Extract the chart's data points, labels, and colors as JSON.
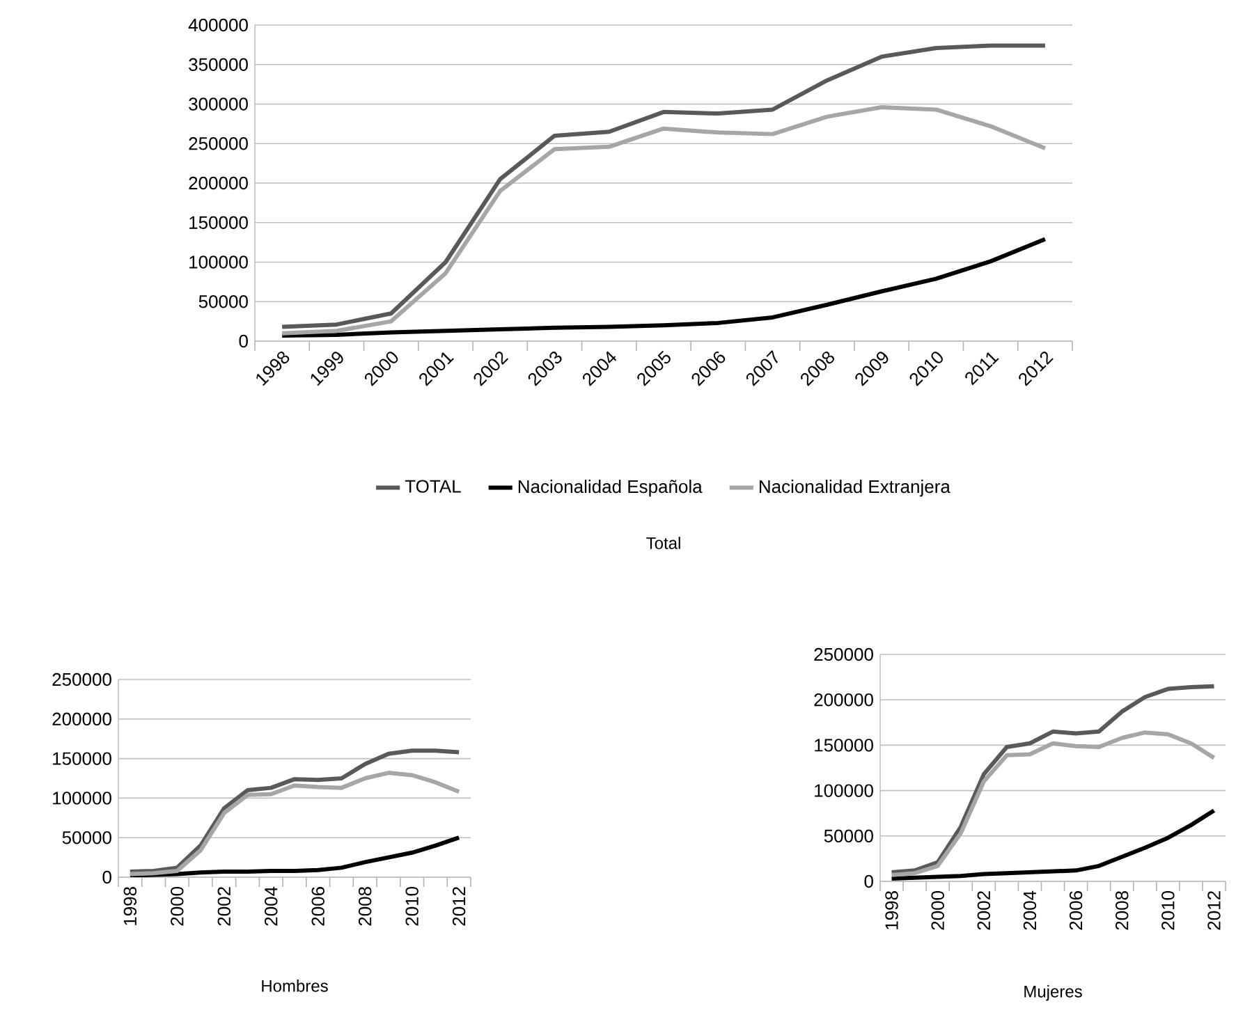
{
  "chart_data": [
    {
      "type": "line",
      "title": "Total",
      "categories": [
        "1998",
        "1999",
        "2000",
        "2001",
        "2002",
        "2003",
        "2004",
        "2005",
        "2006",
        "2007",
        "2008",
        "2009",
        "2010",
        "2011",
        "2012"
      ],
      "series": [
        {
          "name": "TOTAL",
          "color": "#595959",
          "values": [
            18000,
            21000,
            35000,
            100000,
            205000,
            260000,
            265000,
            290000,
            288000,
            293000,
            330000,
            360000,
            371000,
            374000,
            374000
          ]
        },
        {
          "name": "Nacionalidad Española",
          "color": "#000000",
          "values": [
            7000,
            8000,
            11000,
            13000,
            15000,
            17000,
            18000,
            20000,
            23000,
            30000,
            46000,
            63000,
            79000,
            101000,
            129000
          ]
        },
        {
          "name": "Nacionalidad Extranjera",
          "color": "#a6a6a6",
          "values": [
            10000,
            13000,
            25000,
            86000,
            190000,
            243000,
            246000,
            269000,
            264000,
            262000,
            284000,
            296000,
            293000,
            272000,
            244000
          ]
        }
      ],
      "ylim": [
        0,
        400000
      ],
      "yticks": [
        0,
        50000,
        100000,
        150000,
        200000,
        250000,
        300000,
        350000,
        400000
      ],
      "grid": "y",
      "legend": "bottom",
      "marker": "none",
      "line_style": "solid"
    },
    {
      "type": "line",
      "title": "Hombres",
      "categories": [
        "1998",
        null,
        "2000",
        null,
        "2002",
        null,
        "2004",
        null,
        "2006",
        null,
        "2008",
        null,
        "2010",
        null,
        "2012"
      ],
      "series": [
        {
          "color": "#595959",
          "values": [
            7000,
            8000,
            12000,
            40000,
            87000,
            110000,
            113000,
            124000,
            123000,
            125000,
            143000,
            156000,
            160000,
            160000,
            158000
          ]
        },
        {
          "color": "#000000",
          "values": [
            2000,
            3000,
            4000,
            6000,
            7000,
            7000,
            8000,
            8000,
            9000,
            12000,
            19000,
            25000,
            31000,
            40000,
            50000
          ]
        },
        {
          "color": "#a6a6a6",
          "values": [
            4000,
            5000,
            8000,
            34000,
            81000,
            104000,
            105000,
            116000,
            114000,
            113000,
            125000,
            132000,
            129000,
            120000,
            108000
          ]
        }
      ],
      "ylim": [
        0,
        250000
      ],
      "yticks": [
        0,
        50000,
        100000,
        150000,
        200000,
        250000
      ],
      "grid": "y",
      "marker": "none",
      "line_style": "solid"
    },
    {
      "type": "line",
      "title": "Mujeres",
      "categories": [
        "1998",
        null,
        "2000",
        null,
        "2002",
        null,
        "2004",
        null,
        "2006",
        null,
        "2008",
        null,
        "2010",
        null,
        "2012"
      ],
      "series": [
        {
          "color": "#595959",
          "values": [
            10000,
            12000,
            21000,
            60000,
            118000,
            148000,
            152000,
            165000,
            163000,
            165000,
            187000,
            203000,
            212000,
            214000,
            215000
          ]
        },
        {
          "color": "#000000",
          "values": [
            3000,
            4000,
            5000,
            6000,
            8000,
            9000,
            10000,
            11000,
            12000,
            17000,
            27000,
            37000,
            48000,
            62000,
            78000
          ]
        },
        {
          "color": "#a6a6a6",
          "values": [
            7000,
            9000,
            17000,
            53000,
            110000,
            139000,
            140000,
            152000,
            149000,
            148000,
            158000,
            164000,
            162000,
            152000,
            136000
          ]
        }
      ],
      "ylim": [
        0,
        250000
      ],
      "yticks": [
        0,
        50000,
        100000,
        150000,
        200000,
        250000
      ],
      "grid": "y",
      "marker": "none",
      "line_style": "solid"
    }
  ]
}
